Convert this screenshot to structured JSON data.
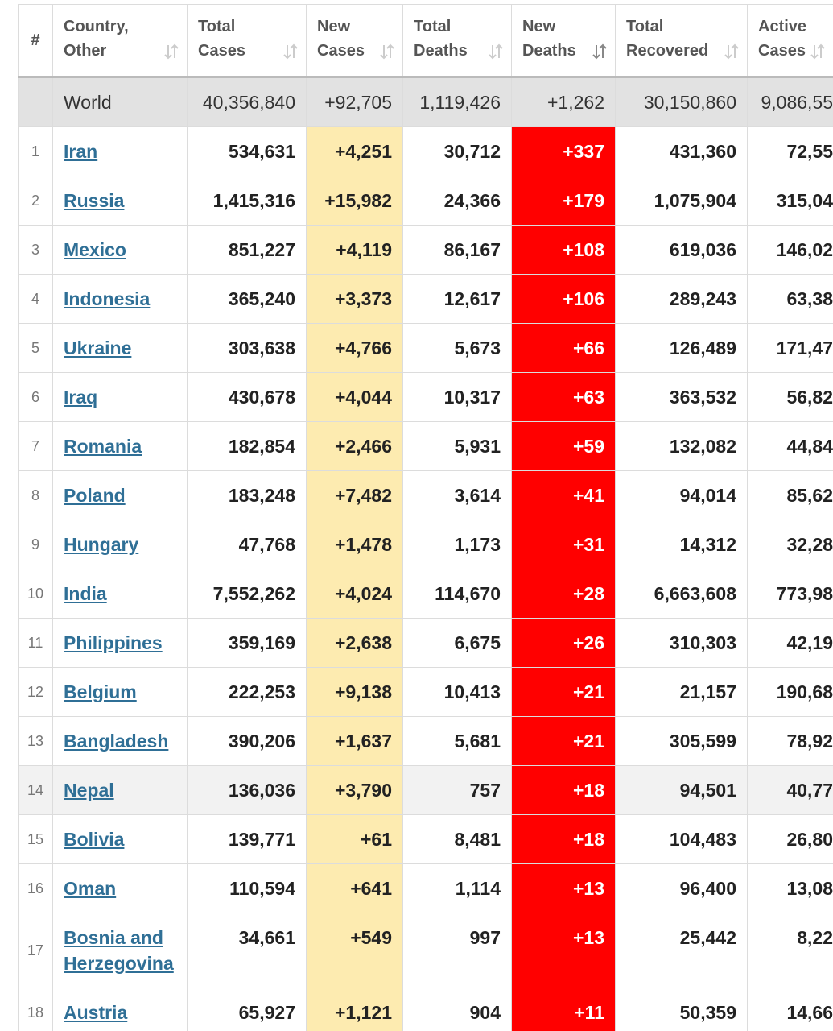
{
  "table": {
    "columns": [
      [
        "#"
      ],
      [
        "Country,",
        "Other"
      ],
      [
        "Total",
        "Cases"
      ],
      [
        "New",
        "Cases"
      ],
      [
        "Total",
        "Deaths"
      ],
      [
        "New",
        "Deaths"
      ],
      [
        "Total",
        "Recovered"
      ],
      [
        "Active",
        "Cases"
      ]
    ],
    "world": [
      "World",
      "40,356,840",
      "+92,705",
      "1,119,426",
      "+1,262",
      "30,150,860",
      "9,086,55"
    ],
    "rows": [
      [
        "1",
        "Iran",
        "534,631",
        "+4,251",
        "30,712",
        "+337",
        "431,360",
        "72,55"
      ],
      [
        "2",
        "Russia",
        "1,415,316",
        "+15,982",
        "24,366",
        "+179",
        "1,075,904",
        "315,04"
      ],
      [
        "3",
        "Mexico",
        "851,227",
        "+4,119",
        "86,167",
        "+108",
        "619,036",
        "146,02"
      ],
      [
        "4",
        "Indonesia",
        "365,240",
        "+3,373",
        "12,617",
        "+106",
        "289,243",
        "63,38"
      ],
      [
        "5",
        "Ukraine",
        "303,638",
        "+4,766",
        "5,673",
        "+66",
        "126,489",
        "171,47"
      ],
      [
        "6",
        "Iraq",
        "430,678",
        "+4,044",
        "10,317",
        "+63",
        "363,532",
        "56,82"
      ],
      [
        "7",
        "Romania",
        "182,854",
        "+2,466",
        "5,931",
        "+59",
        "132,082",
        "44,84"
      ],
      [
        "8",
        "Poland",
        "183,248",
        "+7,482",
        "3,614",
        "+41",
        "94,014",
        "85,62"
      ],
      [
        "9",
        "Hungary",
        "47,768",
        "+1,478",
        "1,173",
        "+31",
        "14,312",
        "32,28"
      ],
      [
        "10",
        "India",
        "7,552,262",
        "+4,024",
        "114,670",
        "+28",
        "6,663,608",
        "773,98"
      ],
      [
        "11",
        "Philippines",
        "359,169",
        "+2,638",
        "6,675",
        "+26",
        "310,303",
        "42,19"
      ],
      [
        "12",
        "Belgium",
        "222,253",
        "+9,138",
        "10,413",
        "+21",
        "21,157",
        "190,68"
      ],
      [
        "13",
        "Bangladesh",
        "390,206",
        "+1,637",
        "5,681",
        "+21",
        "305,599",
        "78,92"
      ],
      [
        "14",
        "Nepal",
        "136,036",
        "+3,790",
        "757",
        "+18",
        "94,501",
        "40,77"
      ],
      [
        "15",
        "Bolivia",
        "139,771",
        "+61",
        "8,481",
        "+18",
        "104,483",
        "26,80"
      ],
      [
        "16",
        "Oman",
        "110,594",
        "+641",
        "1,114",
        "+13",
        "96,400",
        "13,08"
      ],
      [
        "17",
        "Bosnia and Herzegovina",
        "34,661",
        "+549",
        "997",
        "+13",
        "25,442",
        "8,22"
      ],
      [
        "18",
        "Austria",
        "65,927",
        "+1,121",
        "904",
        "+11",
        "50,359",
        "14,66"
      ]
    ]
  }
}
